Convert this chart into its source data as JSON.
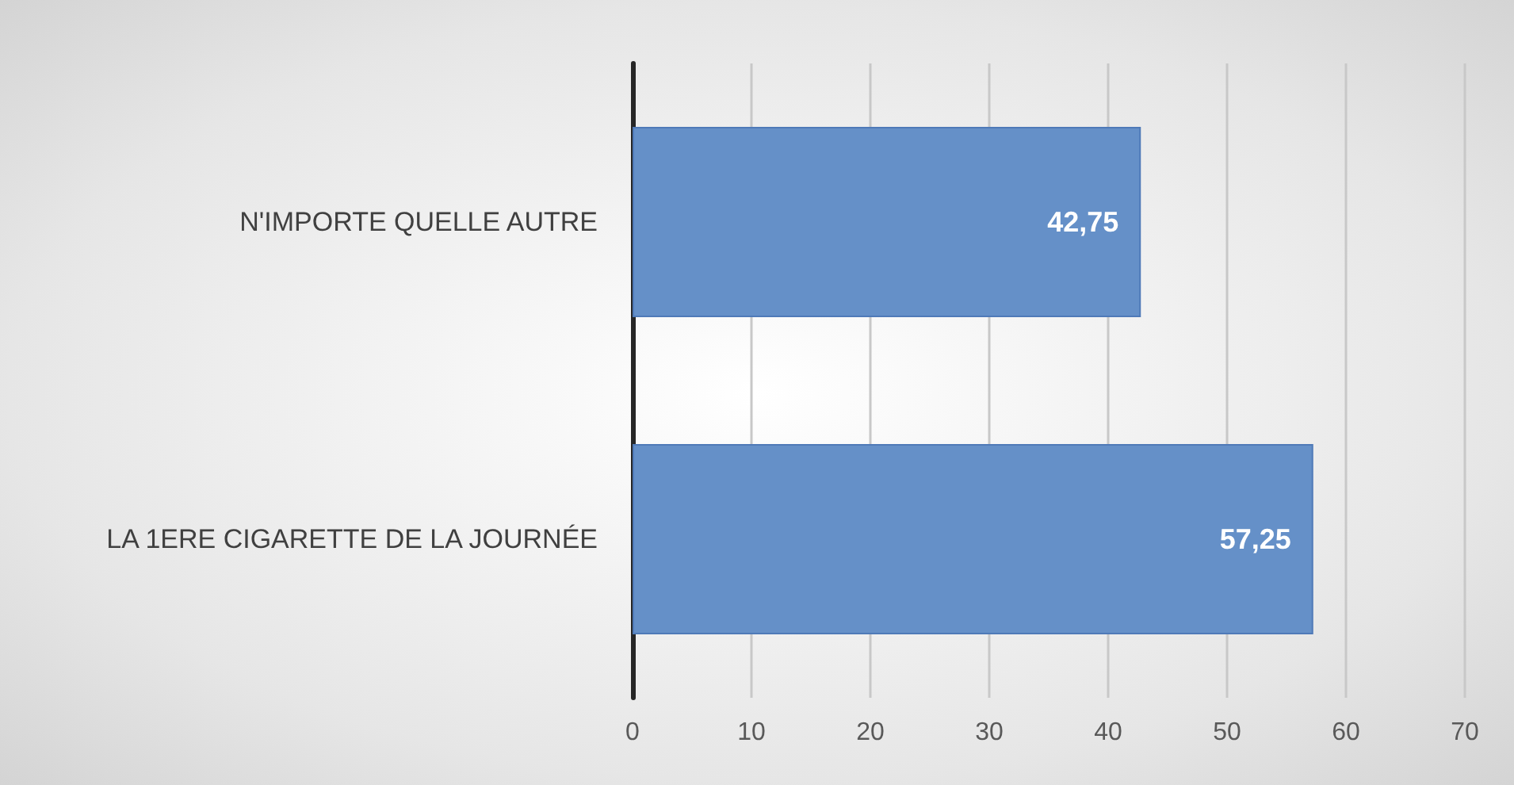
{
  "chart_data": {
    "type": "bar",
    "orientation": "horizontal",
    "categories": [
      "N'IMPORTE QUELLE AUTRE",
      "LA 1ERE CIGARETTE DE LA JOURNÉE"
    ],
    "values": [
      42.75,
      57.25
    ],
    "color": "#6590c8",
    "value_labels": [
      "42,75",
      "57,25"
    ],
    "xlim": [
      0,
      70
    ],
    "xticks": [
      0,
      10,
      20,
      30,
      40,
      50,
      60,
      70
    ],
    "grid": "x"
  }
}
